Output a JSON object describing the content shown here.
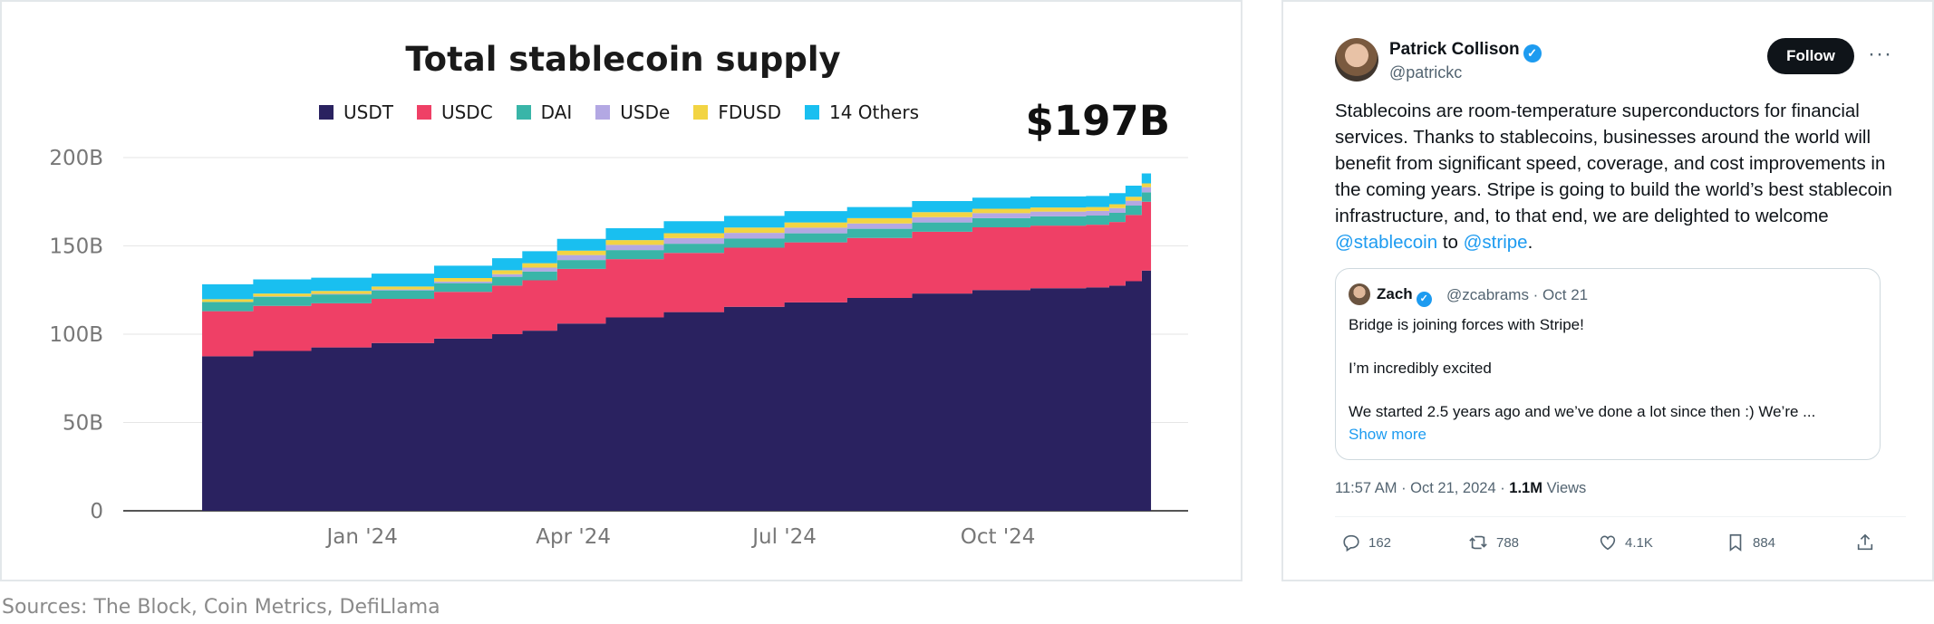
{
  "chart_data": {
    "type": "area",
    "stacked": true,
    "title": "Total stablecoin supply",
    "total_label": "$197B",
    "y_ticks": [
      "0",
      "50B",
      "100B",
      "150B",
      "200B"
    ],
    "y_tick_values": [
      0,
      50,
      100,
      150,
      200
    ],
    "ylim": [
      0,
      200
    ],
    "x_tick_labels": [
      "Jan '24",
      "Apr '24",
      "Jul '24",
      "Oct '24"
    ],
    "x_tick_dates": [
      "2024-01-01",
      "2024-04-01",
      "2024-07-01",
      "2024-10-01"
    ],
    "x": [
      "2023-10-24",
      "2023-11-15",
      "2023-12-10",
      "2024-01-05",
      "2024-02-01",
      "2024-02-26",
      "2024-03-10",
      "2024-03-25",
      "2024-04-15",
      "2024-05-10",
      "2024-06-05",
      "2024-07-01",
      "2024-07-28",
      "2024-08-25",
      "2024-09-20",
      "2024-10-15",
      "2024-11-08",
      "2024-11-18",
      "2024-11-25",
      "2024-12-02",
      "2024-12-06"
    ],
    "grid": true,
    "legend_position": "top",
    "series": [
      {
        "name": "USDT",
        "color": "#2a2260",
        "values": [
          87.5,
          90.5,
          92.5,
          95,
          97.5,
          100,
          102,
          106,
          109.5,
          112.5,
          115.5,
          118,
          120.5,
          123,
          125,
          126,
          126.5,
          127.5,
          130,
          136,
          141
        ]
      },
      {
        "name": "USDC",
        "color": "#ef4066",
        "values": [
          25.5,
          25.5,
          25,
          25,
          26.5,
          27.5,
          28.5,
          31,
          33,
          33.5,
          33.5,
          34,
          34,
          35,
          35.5,
          35.5,
          35.5,
          36,
          37.5,
          39,
          40
        ]
      },
      {
        "name": "DAI",
        "color": "#39b5a8",
        "values": [
          5.2,
          5.2,
          5.0,
          4.8,
          4.9,
          5.0,
          5.0,
          5.0,
          5.1,
          5.2,
          5.1,
          5.1,
          5.2,
          5.3,
          5.2,
          5.2,
          5.2,
          5.2,
          5.3,
          5.3,
          5.3
        ]
      },
      {
        "name": "USDe",
        "color": "#b3a8e3",
        "values": [
          0.1,
          0.2,
          0.3,
          0.5,
          0.9,
          1.5,
          2.2,
          2.8,
          3.0,
          3.2,
          3.3,
          3.2,
          3.0,
          3.0,
          2.8,
          2.7,
          2.6,
          2.7,
          2.8,
          3.0,
          3.2
        ]
      },
      {
        "name": "FDUSD",
        "color": "#f2d443",
        "values": [
          1.5,
          1.6,
          1.7,
          1.7,
          2.0,
          2.2,
          2.5,
          2.5,
          2.7,
          2.8,
          3.0,
          3.0,
          3.0,
          2.8,
          2.5,
          2.3,
          2.2,
          2.2,
          2.2,
          2.1,
          2.1
        ]
      },
      {
        "name": "14 Others",
        "color": "#19bff0",
        "values": [
          8.5,
          8.0,
          7.5,
          7.3,
          7.0,
          6.8,
          6.8,
          6.7,
          6.7,
          6.8,
          6.6,
          6.4,
          6.3,
          6.3,
          6.3,
          6.3,
          6.3,
          6.3,
          6.3,
          5.6,
          5.4
        ]
      }
    ]
  },
  "sources_text": "Sources: The Block, Coin Metrics, DefiLlama",
  "tweet": {
    "author_name": "Patrick Collison",
    "author_handle": "@patrickc",
    "follow_label": "Follow",
    "more_icon": "ellipsis-icon",
    "text_before": "Stablecoins are room-temperature superconductors for financial services. Thanks to stablecoins, businesses around the world will benefit from significant speed, coverage, and cost improvements in the coming years. Stripe is going to build the world’s best stablecoin infrastructure, and, to that end, we are delighted to welcome ",
    "mention_1": "@stablecoin",
    "text_between": " to ",
    "mention_2": "@stripe",
    "text_after": ".",
    "quote": {
      "author_name": "Zach",
      "handle_date": "@zcabrams · Oct 21",
      "line_1": "Bridge is joining forces with Stripe!",
      "line_2": "I’m incredibly excited",
      "line_3": "We started 2.5 years ago and we’ve done a lot since then :) We’re ...",
      "show_more": "Show more"
    },
    "timestamp": "11:57 AM · Oct 21, 2024 · ",
    "views_count": "1.1M",
    "views_label": " Views",
    "actions": {
      "replies": "162",
      "retweets": "788",
      "likes": "4.1K",
      "bookmarks": "884"
    },
    "accent_color": "#1d9bf0"
  }
}
